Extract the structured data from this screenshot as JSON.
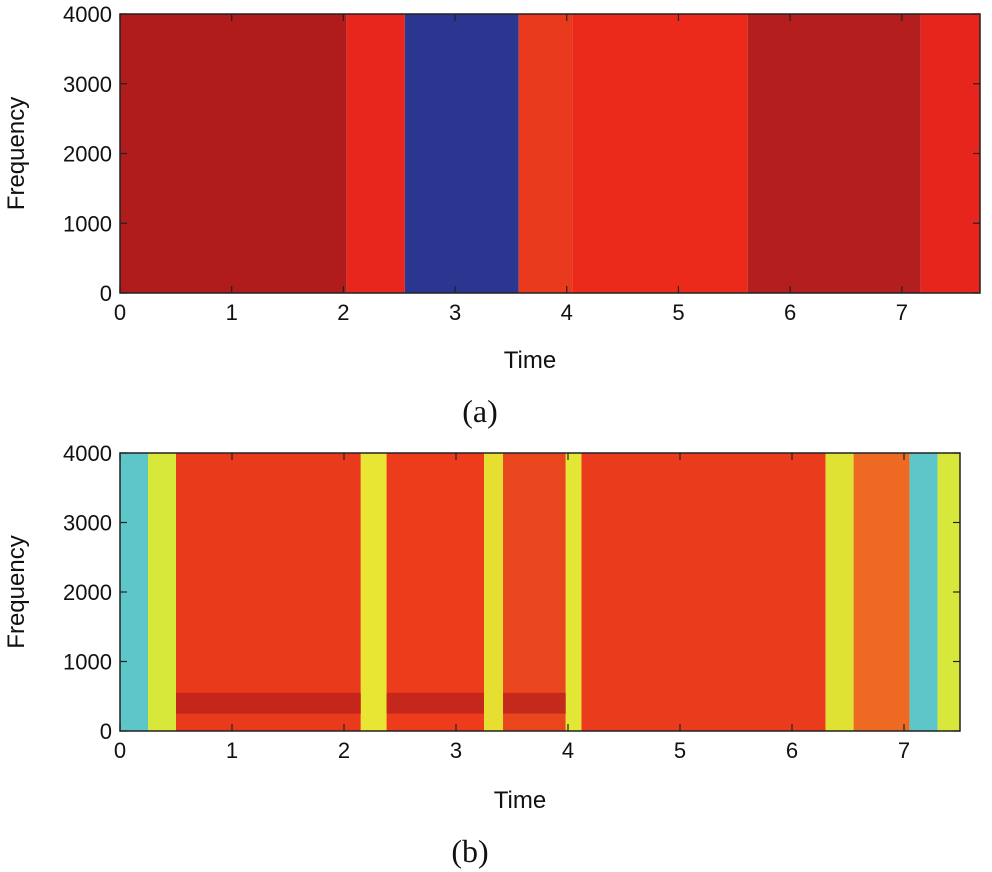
{
  "chart_data": [
    {
      "type": "heatmap",
      "caption": "(a)",
      "xlabel": "Time",
      "ylabel": "Frequency",
      "xlim": [
        0,
        7.7
      ],
      "ylim": [
        0,
        4000
      ],
      "xticks": [
        "0",
        "1",
        "2",
        "3",
        "4",
        "5",
        "6",
        "7"
      ],
      "yticks": [
        "0",
        "1000",
        "2000",
        "3000",
        "4000"
      ],
      "segments": [
        {
          "t0": 0.0,
          "t1": 2.03,
          "color": "#b01c1c"
        },
        {
          "t0": 2.03,
          "t1": 2.55,
          "color": "#e8261c"
        },
        {
          "t0": 2.55,
          "t1": 3.57,
          "color": "#2a3690"
        },
        {
          "t0": 3.57,
          "t1": 4.05,
          "color": "#ea3a1e"
        },
        {
          "t0": 4.05,
          "t1": 5.62,
          "color": "#ec2a1c"
        },
        {
          "t0": 5.62,
          "t1": 7.17,
          "color": "#b41e1e"
        },
        {
          "t0": 7.17,
          "t1": 7.7,
          "color": "#e6261c"
        }
      ]
    },
    {
      "type": "heatmap",
      "caption": "(b)",
      "xlabel": "Time",
      "ylabel": "Frequency",
      "xlim": [
        0,
        7.5
      ],
      "ylim": [
        0,
        4000
      ],
      "xticks": [
        "0",
        "1",
        "2",
        "3",
        "4",
        "5",
        "6",
        "7"
      ],
      "yticks": [
        "0",
        "1000",
        "2000",
        "3000",
        "4000"
      ],
      "segments": [
        {
          "t0": 0.0,
          "t1": 0.25,
          "color": "#5cc6c8"
        },
        {
          "t0": 0.25,
          "t1": 0.5,
          "color": "#d8e83a"
        },
        {
          "t0": 0.5,
          "t1": 2.15,
          "color": "#ea3a1c"
        },
        {
          "t0": 2.15,
          "t1": 2.38,
          "color": "#e8e632"
        },
        {
          "t0": 2.38,
          "t1": 3.25,
          "color": "#ec3c1c"
        },
        {
          "t0": 3.25,
          "t1": 3.42,
          "color": "#e6de30"
        },
        {
          "t0": 3.42,
          "t1": 3.98,
          "color": "#ea461e"
        },
        {
          "t0": 3.98,
          "t1": 4.12,
          "color": "#e2e634"
        },
        {
          "t0": 4.12,
          "t1": 6.3,
          "color": "#ea3c1c"
        },
        {
          "t0": 6.3,
          "t1": 6.55,
          "color": "#dfe232"
        },
        {
          "t0": 6.55,
          "t1": 7.05,
          "color": "#ee6a22"
        },
        {
          "t0": 7.05,
          "t1": 7.3,
          "color": "#5cc6c8"
        },
        {
          "t0": 7.3,
          "t1": 7.5,
          "color": "#d8e83a"
        }
      ],
      "low_band": {
        "f0": 250,
        "f1": 550,
        "color": "#b8201c"
      }
    }
  ]
}
